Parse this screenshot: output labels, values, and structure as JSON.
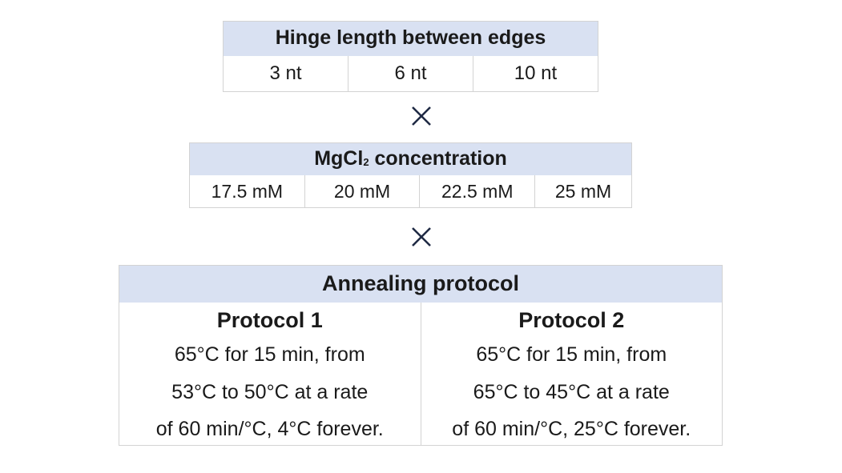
{
  "hinge_table": {
    "header": "Hinge length between edges",
    "values": [
      "3 nt",
      "6 nt",
      "10 nt"
    ]
  },
  "operator_1": "×",
  "mgcl2_table": {
    "header_main": "MgCl",
    "header_subscript": "2",
    "header_rest": " concentration",
    "values": [
      "17.5 mM",
      "20 mM",
      "22.5 mM",
      "25 mM"
    ]
  },
  "operator_2": "×",
  "annealing_table": {
    "header": "Annealing protocol",
    "protocols": [
      {
        "title": "Protocol 1",
        "lines": [
          "65°C for 15 min, from",
          "53°C to 50°C at a rate",
          "of 60 min/°C, 4°C forever."
        ]
      },
      {
        "title": "Protocol 2",
        "lines": [
          "65°C for 15 min, from",
          "65°C to 45°C at a rate",
          "of 60 min/°C, 25°C forever."
        ]
      }
    ]
  },
  "colors": {
    "header_fill": "#d9e1f2",
    "border": "#d3d3d3",
    "operator": "#1f2a44"
  }
}
